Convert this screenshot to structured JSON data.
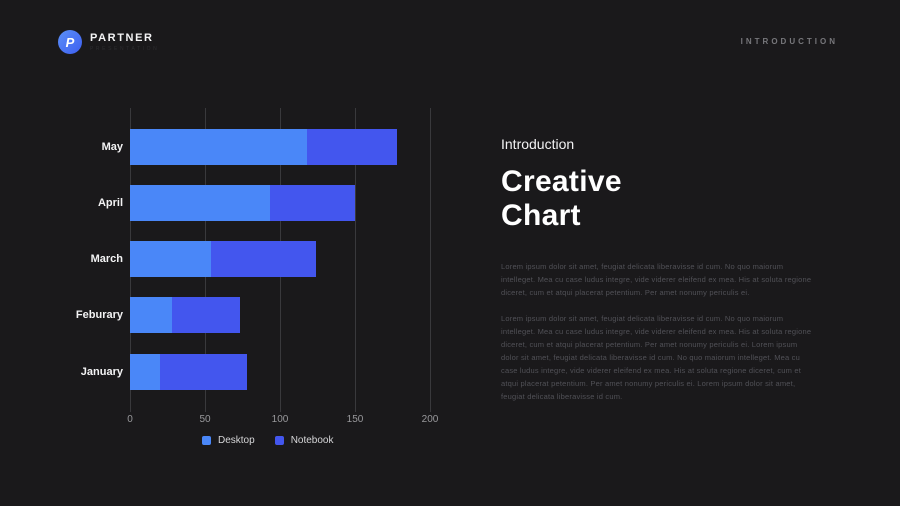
{
  "slide": {
    "background": "#1a191b"
  },
  "header": {
    "logo_text": "PARTNER",
    "logo_tagline": "PRESENTATION",
    "logo_monogram": "P",
    "page_label": "INTRODUCTION"
  },
  "content": {
    "kicker": "Introduction",
    "title_line1": "Creative",
    "title_line2": "Chart",
    "paragraph1": "Lorem ipsum dolor sit amet, feugiat delicata liberavisse id cum. No quo maiorum intelleget. Mea cu case ludus integre, vide viderer eleifend ex mea. His at soluta regione diceret, cum et atqui placerat petentium. Per amet nonumy periculis ei.",
    "paragraph2": "Lorem ipsum dolor sit amet, feugiat delicata liberavisse id cum. No quo maiorum intelleget. Mea cu case ludus integre, vide viderer eleifend ex mea. His at soluta regione diceret, cum et atqui placerat petentium. Per amet nonumy periculis ei. Lorem ipsum dolor sit amet, feugiat delicata liberavisse id cum. No quo maiorum intelleget. Mea cu case ludus integre, vide viderer eleifend ex mea. His at soluta regione diceret, cum et atqui placerat petentium. Per amet nonumy periculis ei. Lorem ipsum dolor sit amet, feugiat delicata liberavisse id cum."
  },
  "chart_data": {
    "type": "bar",
    "orientation": "horizontal",
    "stacked": true,
    "categories": [
      "May",
      "April",
      "March",
      "Feburary",
      "January"
    ],
    "series": [
      {
        "name": "Desktop",
        "color": "#4a87f8",
        "values": [
          118,
          93,
          54,
          28,
          20
        ]
      },
      {
        "name": "Notebook",
        "color": "#4356ee",
        "values": [
          60,
          57,
          70,
          45,
          58
        ]
      }
    ],
    "xticks": [
      0,
      50,
      100,
      150,
      200
    ],
    "xlim": [
      0,
      200
    ],
    "grid": true,
    "legend_position": "bottom",
    "gridline_color": "#39393c"
  }
}
